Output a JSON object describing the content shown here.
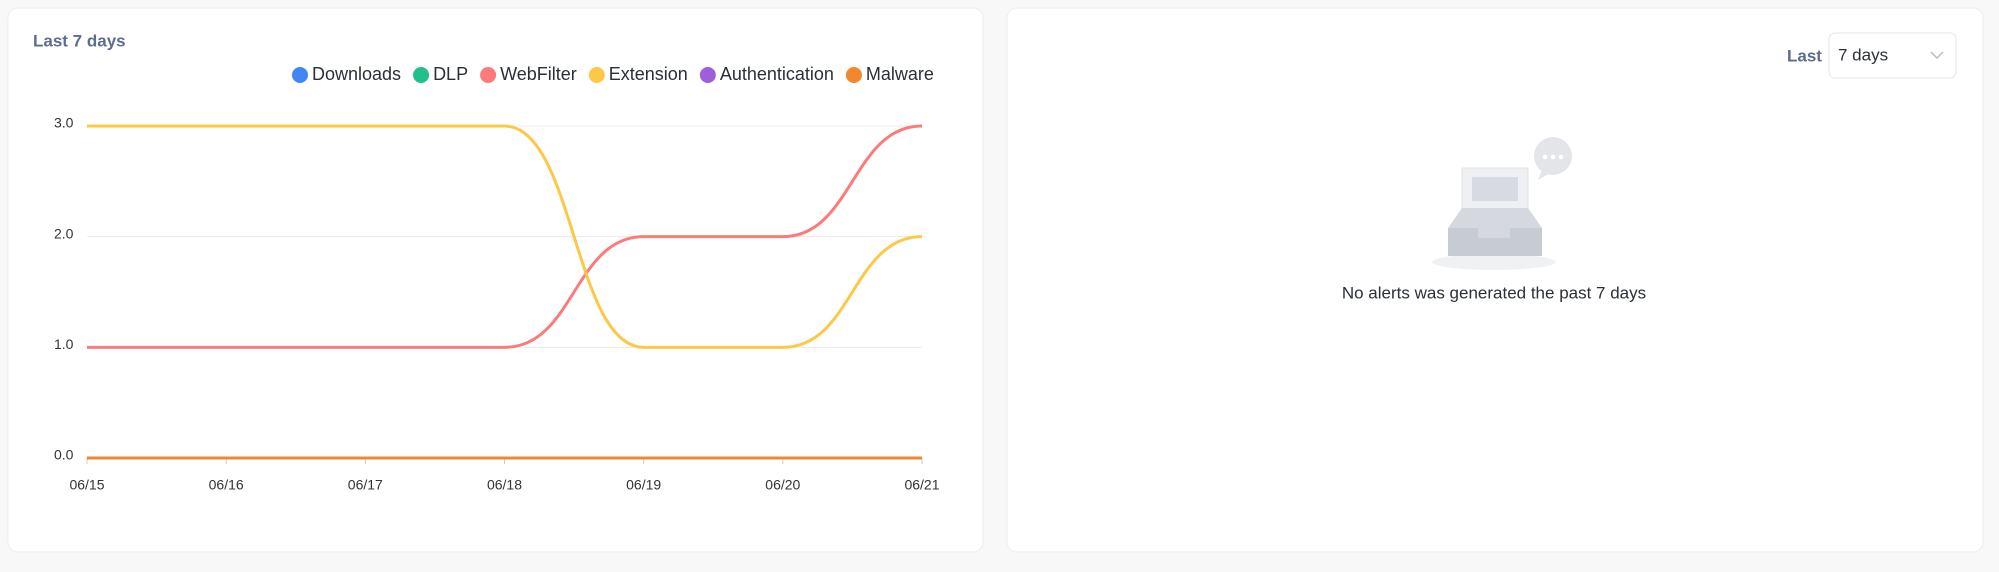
{
  "chart_data": {
    "type": "line",
    "title": "Last 7 days",
    "categories": [
      "06/15",
      "06/16",
      "06/17",
      "06/18",
      "06/19",
      "06/20",
      "06/21"
    ],
    "series": [
      {
        "name": "Downloads",
        "color": "#4285f4",
        "values": [
          0,
          0,
          0,
          0,
          0,
          0,
          0
        ]
      },
      {
        "name": "DLP",
        "color": "#21c08b",
        "values": [
          0,
          0,
          0,
          0,
          0,
          0,
          0
        ]
      },
      {
        "name": "WebFilter",
        "color": "#fb7b7b",
        "values": [
          1,
          1,
          1,
          1,
          2,
          2,
          3
        ]
      },
      {
        "name": "Extension",
        "color": "#fdc846",
        "values": [
          3,
          3,
          3,
          3,
          1,
          1,
          2
        ]
      },
      {
        "name": "Authentication",
        "color": "#9d5fdc",
        "values": [
          0,
          0,
          0,
          0,
          0,
          0,
          0
        ]
      },
      {
        "name": "Malware",
        "color": "#f2872f",
        "values": [
          0,
          0,
          0,
          0,
          0,
          0,
          0
        ]
      }
    ],
    "ylim": [
      0,
      3
    ],
    "yticks": [
      {
        "value": 0,
        "label": "0.0"
      },
      {
        "value": 1,
        "label": "1.0"
      },
      {
        "value": 2,
        "label": "2.0"
      },
      {
        "value": 3,
        "label": "3.0"
      }
    ],
    "grid": true
  },
  "panel": {
    "filter_label": "Last",
    "filter_value": "7 days",
    "empty_message": "No alerts was generated the past 7 days"
  }
}
